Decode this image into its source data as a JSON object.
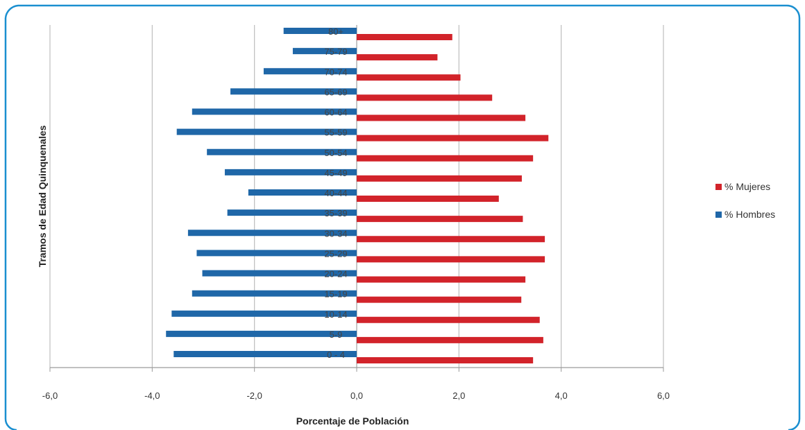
{
  "chart_data": {
    "type": "bar",
    "orientation": "horizontal",
    "title": "",
    "xlabel": "Porcentaje de Población",
    "ylabel": "Tramos de Edad Quinquenales",
    "xlim": [
      -6,
      6
    ],
    "x_ticks": [
      "-6,0",
      "-4,0",
      "-2,0",
      "0,0",
      "2,0",
      "4,0",
      "6,0"
    ],
    "grid": "vertical",
    "legend_position": "right",
    "categories": [
      "0 - 4",
      "5-9",
      "10-14",
      "15-19",
      "20-24",
      "25-29",
      "30-34",
      "35-39",
      "40-44",
      "45-49",
      "50-54",
      "55-59",
      "60-64",
      "65-69",
      "70-74",
      "75-79",
      "80+"
    ],
    "series": [
      {
        "name": "% Mujeres",
        "color": "#d2232a",
        "values": [
          3.45,
          3.65,
          3.58,
          3.22,
          3.3,
          3.68,
          3.68,
          3.25,
          2.78,
          3.23,
          3.45,
          3.75,
          3.3,
          2.65,
          2.03,
          1.58,
          1.87
        ]
      },
      {
        "name": "% Hombres",
        "color": "#1f67a8",
        "values": [
          -3.58,
          -3.73,
          -3.62,
          -3.22,
          -3.02,
          -3.13,
          -3.3,
          -2.53,
          -2.12,
          -2.58,
          -2.93,
          -3.52,
          -3.22,
          -2.47,
          -1.82,
          -1.25,
          -1.43
        ]
      }
    ]
  }
}
